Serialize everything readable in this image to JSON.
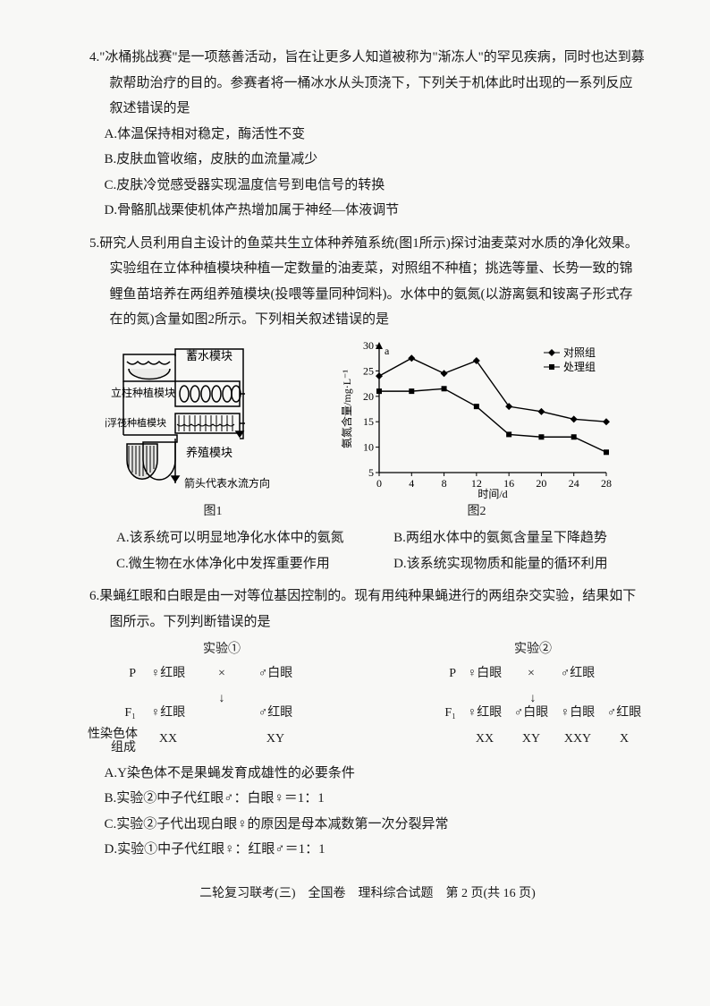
{
  "q4": {
    "number": "4.",
    "stem": "\"冰桶挑战赛\"是一项慈善活动，旨在让更多人知道被称为\"渐冻人\"的罕见疾病，同时也达到募款帮助治疗的目的。参赛者将一桶冰水从头顶浇下，下列关于机体此时出现的一系列反应叙述错误的是",
    "A": "A.体温保持相对稳定，酶活性不变",
    "B": "B.皮肤血管收缩，皮肤的血流量减少",
    "C": "C.皮肤冷觉感受器实现温度信号到电信号的转换",
    "D": "D.骨骼肌战栗使机体产热增加属于神经—体液调节"
  },
  "q5": {
    "number": "5.",
    "stem": "研究人员利用自主设计的鱼菜共生立体种养殖系统(图1所示)探讨油麦菜对水质的净化效果。实验组在立体种植模块种植一定数量的油麦菜，对照组不种植；挑选等量、长势一致的锦鲤鱼苗培养在两组养殖模块(投喂等量同种饲料)。水体中的氨氮(以游离氨和铵离子形式存在的氮)含量如图2所示。下列相关叙述错误的是",
    "fig1": {
      "labels": [
        "蓄水模块",
        "立柱种植模块",
        "平面浮筏种植模块",
        "养殖模块",
        "箭头代表水流方向"
      ],
      "caption": "图1",
      "stroke": "#000000"
    },
    "fig2": {
      "type": "line",
      "xlabel": "时间/d",
      "ylabel": "氨氮含量/mg·L⁻¹",
      "xlim": [
        0,
        28
      ],
      "ylim": [
        5,
        30
      ],
      "xticks": [
        0,
        4,
        8,
        12,
        16,
        20,
        24,
        28
      ],
      "yticks": [
        5,
        10,
        15,
        20,
        25,
        30
      ],
      "series": [
        {
          "name": "对照组",
          "marker": "diamond",
          "color": "#000000",
          "points": [
            [
              0,
              24
            ],
            [
              4,
              27.5
            ],
            [
              8,
              24.5
            ],
            [
              12,
              27
            ],
            [
              16,
              18
            ],
            [
              20,
              17
            ],
            [
              24,
              15.5
            ],
            [
              28,
              15
            ]
          ]
        },
        {
          "name": "处理组",
          "marker": "square",
          "color": "#000000",
          "points": [
            [
              0,
              21
            ],
            [
              4,
              21
            ],
            [
              8,
              21.5
            ],
            [
              12,
              18
            ],
            [
              16,
              12.5
            ],
            [
              20,
              12
            ],
            [
              24,
              12
            ],
            [
              28,
              9
            ]
          ]
        }
      ],
      "legend_labels": [
        "对照组",
        "处理组"
      ],
      "annotation": "a",
      "caption": "图2",
      "font_size": 12
    },
    "A": "A.该系统可以明显地净化水体中的氨氮",
    "B": "B.两组水体中的氨氮含量呈下降趋势",
    "C": "C.微生物在水体净化中发挥重要作用",
    "D": "D.该系统实现物质和能量的循环利用"
  },
  "q6": {
    "number": "6.",
    "stem": "果蝇红眼和白眼是由一对等位基因控制的。现有用纯种果蝇进行的两组杂交实验，结果如下图所示。下列判断错误的是",
    "cross1": {
      "title": "实验①",
      "P_left": "♀红眼",
      "op": "×",
      "P_right": "♂白眼",
      "F1_left": "♀红眼",
      "F1_right": "♂红眼",
      "sex_left": "XX",
      "sex_right": "XY"
    },
    "cross2": {
      "title": "实验②",
      "P_left": "♀白眼",
      "op": "×",
      "P_right": "♂红眼",
      "F1_a": "♀红眼",
      "F1_b": "♂白眼",
      "F1_c": "♀白眼",
      "F1_d": "♂红眼",
      "sex_a": "XX",
      "sex_b": "XY",
      "sex_c": "XXY",
      "sex_d": "X"
    },
    "row_labels": {
      "P": "P",
      "F1": "F₁",
      "sex": "性染色体\n组成"
    },
    "A": "A.Y染色体不是果蝇发育成雄性的必要条件",
    "B": "B.实验②中子代红眼♂：白眼♀＝1：1",
    "C": "C.实验②子代出现白眼♀的原因是母本减数第一次分裂异常",
    "D": "D.实验①中子代红眼♀：红眼♂＝1：1"
  },
  "footer": "二轮复习联考(三)　全国卷　理科综合试题　第 2 页(共 16 页)"
}
